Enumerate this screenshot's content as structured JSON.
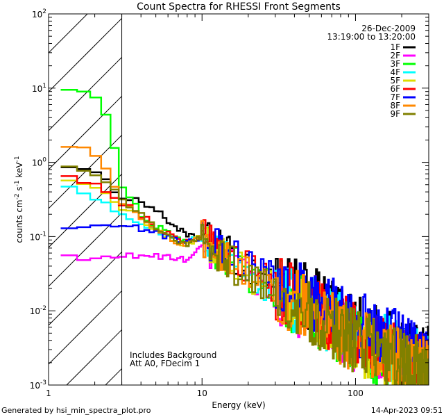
{
  "chart_data": {
    "type": "line",
    "title": "Count Spectra for RHESSI Front Segments",
    "xlabel": "Energy (keV)",
    "ylabel_parts": [
      "counts cm",
      "-2",
      " s",
      "-1",
      " keV",
      "-1"
    ],
    "x_scale": "log",
    "y_scale": "log",
    "xlim": [
      1,
      300
    ],
    "ylim": [
      0.001,
      100
    ],
    "x_ticks": [
      1,
      10,
      100
    ],
    "x_tick_labels": [
      "1",
      "10",
      "100"
    ],
    "y_ticks": [
      0.001,
      0.01,
      0.1,
      1,
      10,
      100
    ],
    "y_tick_labels": [
      {
        "base": "10",
        "exp": "-3"
      },
      {
        "base": "10",
        "exp": "-2"
      },
      {
        "base": "10",
        "exp": "-1"
      },
      {
        "base": "10",
        "exp": "0"
      },
      {
        "base": "10",
        "exp": "1"
      },
      {
        "base": "10",
        "exp": "2"
      }
    ],
    "hatched_region_keV": [
      1,
      3
    ],
    "date": "26-Dec-2009",
    "time_range": "13:19:00 to 13:20:00",
    "annotations": [
      "Includes Background",
      "Att A0, FDecim 1"
    ],
    "series": [
      {
        "name": "1F",
        "color": "#000000",
        "anchors": [
          [
            1.2,
            1.05
          ],
          [
            1.5,
            0.85
          ],
          [
            2.0,
            0.7
          ],
          [
            2.5,
            0.5
          ],
          [
            3.0,
            0.35
          ],
          [
            4.0,
            0.3
          ],
          [
            5.0,
            0.23
          ],
          [
            6.0,
            0.16
          ],
          [
            7.0,
            0.13
          ],
          [
            8.0,
            0.1
          ],
          [
            10.0,
            0.1
          ],
          [
            13,
            0.07
          ],
          [
            20,
            0.04
          ],
          [
            30,
            0.025
          ],
          [
            50,
            0.015
          ],
          [
            100,
            0.006
          ],
          [
            200,
            0.003
          ],
          [
            300,
            0.0022
          ]
        ]
      },
      {
        "name": "2F",
        "color": "#ff00ff",
        "anchors": [
          [
            1.2,
            0.058
          ],
          [
            1.5,
            0.048
          ],
          [
            2.0,
            0.05
          ],
          [
            2.5,
            0.052
          ],
          [
            3.0,
            0.055
          ],
          [
            4.0,
            0.055
          ],
          [
            5.0,
            0.055
          ],
          [
            6.0,
            0.052
          ],
          [
            7.0,
            0.05
          ],
          [
            8.0,
            0.05
          ],
          [
            10.0,
            0.07
          ],
          [
            13,
            0.05
          ],
          [
            20,
            0.03
          ],
          [
            30,
            0.018
          ],
          [
            50,
            0.01
          ],
          [
            100,
            0.004
          ],
          [
            200,
            0.0018
          ],
          [
            300,
            0.0012
          ]
        ]
      },
      {
        "name": "3F",
        "color": "#00ff00",
        "anchors": [
          [
            1.2,
            10.0
          ],
          [
            1.5,
            10.0
          ],
          [
            2.0,
            7.5
          ],
          [
            2.5,
            3.5
          ],
          [
            3.0,
            0.5
          ],
          [
            4.0,
            0.2
          ],
          [
            5.0,
            0.14
          ],
          [
            6.0,
            0.11
          ],
          [
            7.0,
            0.09
          ],
          [
            8.0,
            0.085
          ],
          [
            10.0,
            0.09
          ],
          [
            13,
            0.06
          ],
          [
            20,
            0.03
          ],
          [
            30,
            0.02
          ],
          [
            50,
            0.01
          ],
          [
            100,
            0.004
          ],
          [
            200,
            0.0018
          ],
          [
            300,
            0.0015
          ]
        ]
      },
      {
        "name": "4F",
        "color": "#00ffff",
        "anchors": [
          [
            1.2,
            0.45
          ],
          [
            1.5,
            0.42
          ],
          [
            2.0,
            0.35
          ],
          [
            2.5,
            0.25
          ],
          [
            3.0,
            0.2
          ],
          [
            4.0,
            0.16
          ],
          [
            5.0,
            0.12
          ],
          [
            6.0,
            0.1
          ],
          [
            7.0,
            0.09
          ],
          [
            8.0,
            0.085
          ],
          [
            10.0,
            0.1
          ],
          [
            13,
            0.06
          ],
          [
            20,
            0.03
          ],
          [
            30,
            0.02
          ],
          [
            50,
            0.011
          ],
          [
            100,
            0.005
          ],
          [
            200,
            0.0025
          ],
          [
            300,
            0.0018
          ]
        ]
      },
      {
        "name": "5F",
        "color": "#dddd00",
        "anchors": [
          [
            1.2,
            0.6
          ],
          [
            1.5,
            0.55
          ],
          [
            2.0,
            0.45
          ],
          [
            2.5,
            0.35
          ],
          [
            3.0,
            0.25
          ],
          [
            4.0,
            0.18
          ],
          [
            5.0,
            0.12
          ],
          [
            6.0,
            0.1
          ],
          [
            7.0,
            0.085
          ],
          [
            8.0,
            0.08
          ],
          [
            10.0,
            0.1
          ],
          [
            13,
            0.06
          ],
          [
            20,
            0.03
          ],
          [
            30,
            0.018
          ],
          [
            50,
            0.01
          ],
          [
            100,
            0.004
          ],
          [
            200,
            0.002
          ],
          [
            300,
            0.0015
          ]
        ]
      },
      {
        "name": "6F",
        "color": "#ff0000",
        "anchors": [
          [
            1.2,
            0.65
          ],
          [
            1.5,
            0.6
          ],
          [
            2.0,
            0.5
          ],
          [
            2.5,
            0.4
          ],
          [
            3.0,
            0.28
          ],
          [
            4.0,
            0.2
          ],
          [
            5.0,
            0.13
          ],
          [
            6.0,
            0.11
          ],
          [
            7.0,
            0.09
          ],
          [
            8.0,
            0.085
          ],
          [
            10.0,
            0.1
          ],
          [
            13,
            0.065
          ],
          [
            20,
            0.035
          ],
          [
            30,
            0.022
          ],
          [
            50,
            0.012
          ],
          [
            100,
            0.005
          ],
          [
            200,
            0.0022
          ],
          [
            300,
            0.0017
          ]
        ]
      },
      {
        "name": "7F",
        "color": "#0000ff",
        "anchors": [
          [
            1.2,
            0.13
          ],
          [
            1.5,
            0.14
          ],
          [
            2.0,
            0.15
          ],
          [
            2.5,
            0.15
          ],
          [
            3.0,
            0.14
          ],
          [
            4.0,
            0.13
          ],
          [
            5.0,
            0.11
          ],
          [
            6.0,
            0.1
          ],
          [
            7.0,
            0.09
          ],
          [
            8.0,
            0.085
          ],
          [
            10.0,
            0.1
          ],
          [
            13,
            0.07
          ],
          [
            20,
            0.04
          ],
          [
            30,
            0.025
          ],
          [
            50,
            0.015
          ],
          [
            100,
            0.007
          ],
          [
            200,
            0.0035
          ],
          [
            300,
            0.0025
          ]
        ]
      },
      {
        "name": "8F",
        "color": "#ff8800",
        "anchors": [
          [
            1.2,
            1.7
          ],
          [
            1.5,
            1.8
          ],
          [
            2.0,
            1.2
          ],
          [
            2.5,
            0.7
          ],
          [
            3.0,
            0.3
          ],
          [
            4.0,
            0.17
          ],
          [
            5.0,
            0.12
          ],
          [
            6.0,
            0.1
          ],
          [
            7.0,
            0.085
          ],
          [
            8.0,
            0.08
          ],
          [
            10.0,
            0.1
          ],
          [
            13,
            0.06
          ],
          [
            20,
            0.03
          ],
          [
            30,
            0.018
          ],
          [
            50,
            0.01
          ],
          [
            100,
            0.004
          ],
          [
            200,
            0.002
          ],
          [
            300,
            0.0015
          ]
        ]
      },
      {
        "name": "9F",
        "color": "#808000",
        "anchors": [
          [
            1.2,
            1.0
          ],
          [
            1.5,
            0.9
          ],
          [
            2.0,
            0.7
          ],
          [
            2.5,
            0.5
          ],
          [
            3.0,
            0.3
          ],
          [
            4.0,
            0.2
          ],
          [
            5.0,
            0.13
          ],
          [
            6.0,
            0.1
          ],
          [
            7.0,
            0.085
          ],
          [
            8.0,
            0.08
          ],
          [
            10.0,
            0.1
          ],
          [
            13,
            0.055
          ],
          [
            20,
            0.03
          ],
          [
            30,
            0.018
          ],
          [
            50,
            0.009
          ],
          [
            100,
            0.004
          ],
          [
            200,
            0.002
          ],
          [
            300,
            0.0015
          ]
        ]
      }
    ]
  },
  "footer": {
    "left": "Generated by hsi_min_spectra_plot.pro",
    "right": "14-Apr-2023 09:51"
  }
}
